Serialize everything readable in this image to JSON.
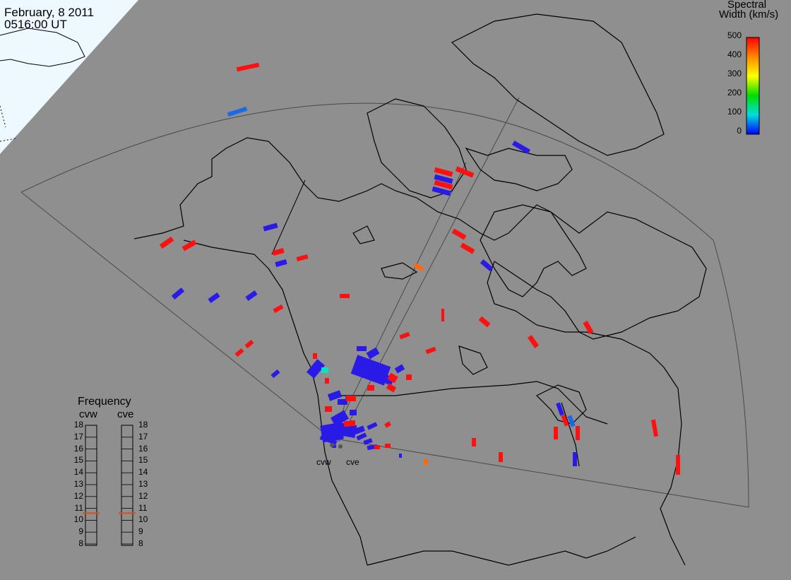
{
  "header": {
    "date": "February, 8 2011",
    "time": "0516:00 UT"
  },
  "colorbar": {
    "title_line1": "Spectral",
    "title_line2": "Width (km/s)",
    "ticks": [
      "500",
      "400",
      "300",
      "200",
      "100",
      "0"
    ],
    "colors": [
      "#ff0000",
      "#ff8800",
      "#ffff00",
      "#00dd00",
      "#00dddd",
      "#0000ff"
    ]
  },
  "frequency_panel": {
    "title": "Frequency",
    "radars": [
      {
        "name": "cvw",
        "value_mhz": 10.6
      },
      {
        "name": "cve",
        "value_mhz": 10.6
      }
    ],
    "ticks": [
      "18",
      "17",
      "16",
      "15",
      "14",
      "13",
      "12",
      "11",
      "10",
      "9",
      "8"
    ],
    "marker_color": "#e04a1a"
  },
  "sites": [
    {
      "label": "cvw"
    },
    {
      "label": "cve"
    }
  ],
  "colors": {
    "background": "#8f8f8f",
    "daylight": "#eef8ff",
    "coast": "#000000",
    "fov": "#444444",
    "echo_low": "#2a1ae8",
    "echo_high": "#ff1010"
  }
}
